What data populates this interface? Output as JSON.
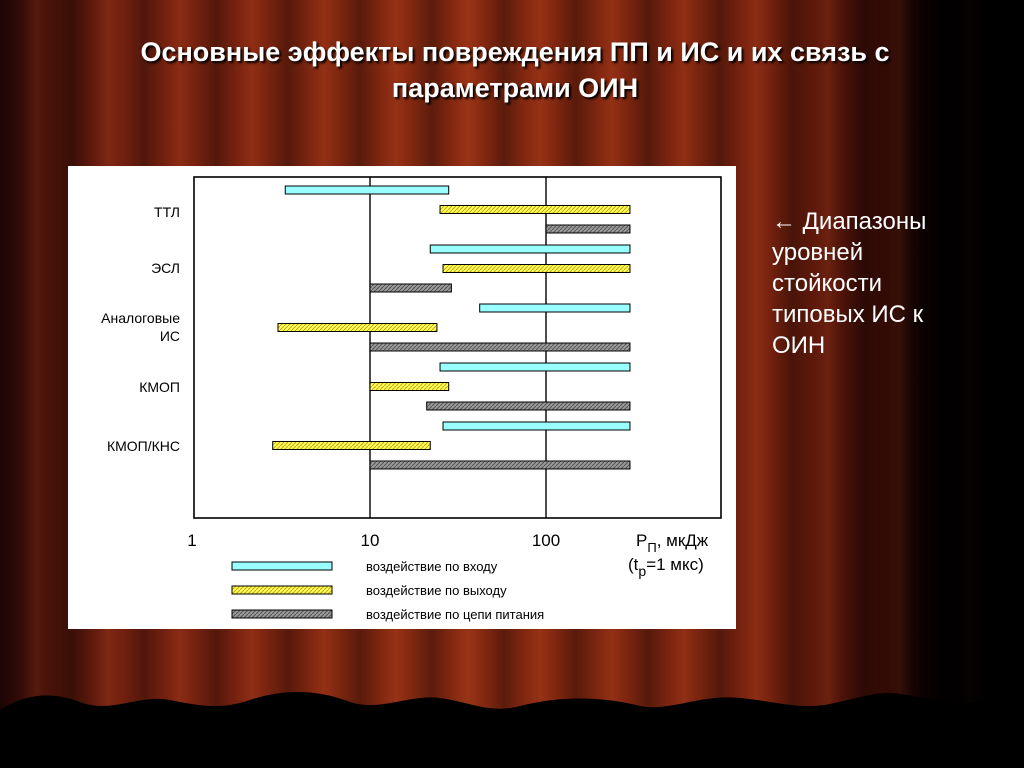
{
  "slide": {
    "title": "Основные эффекты повреждения ПП и ИС и их связь с параметрами ОИН",
    "side_note": "← Диапазоны уровней стойкости типовых ИС к ОИН"
  },
  "colors": {
    "input": "#99ffff",
    "output": "#ffff66",
    "power": "#999999"
  },
  "chart_data": {
    "type": "bar",
    "orientation": "horizontal-range",
    "x_scale": "log",
    "xlim": [
      1,
      300
    ],
    "x_ticks": [
      "1",
      "10",
      "100"
    ],
    "x_unit_label": "Р",
    "x_unit_sub": "П",
    "x_unit_rest": ", мкДж",
    "x_note_open": "(t",
    "x_note_sub": "p",
    "x_note_rest": "=1 мкс)",
    "grid": true,
    "legend_position": "bottom",
    "categories": [
      {
        "label": [
          "ТТЛ"
        ]
      },
      {
        "label": [
          "ЭСЛ"
        ]
      },
      {
        "label": [
          "Аналоговые",
          "ИС"
        ]
      },
      {
        "label": [
          "КМОП"
        ]
      },
      {
        "label": [
          "КМОП/КНС"
        ]
      }
    ],
    "series": [
      {
        "name": "воздействие по входу",
        "key": "input",
        "ranges": [
          [
            3.3,
            28
          ],
          [
            22,
            300
          ],
          [
            42,
            300
          ],
          [
            25,
            300
          ],
          [
            26,
            300
          ]
        ]
      },
      {
        "name": "воздействие по выходу",
        "key": "output",
        "ranges": [
          [
            25,
            300
          ],
          [
            26,
            300
          ],
          [
            3,
            24
          ],
          [
            10,
            28
          ],
          [
            2.8,
            22
          ]
        ]
      },
      {
        "name": "воздействие по цепи питания",
        "key": "power",
        "ranges": [
          [
            100,
            300
          ],
          [
            10,
            29
          ],
          [
            10,
            300
          ],
          [
            21,
            300
          ],
          [
            10,
            300
          ]
        ]
      }
    ]
  }
}
